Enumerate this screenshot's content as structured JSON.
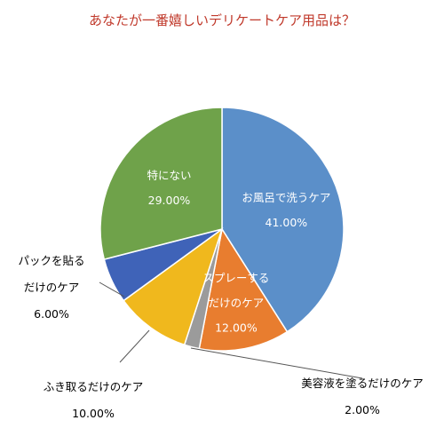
{
  "chart_data": {
    "type": "pie",
    "title": "あなたが一番嬉しいデリケートケア用品は？",
    "slices": [
      {
        "label": [
          "お風呂で洗うケア"
        ],
        "value": 41.0,
        "value_label": "41.00%",
        "color": "#5b8fc9",
        "label_inside": true,
        "text_color": "#ffffff"
      },
      {
        "label": [
          "スプレーする",
          "だけのケア"
        ],
        "value": 12.0,
        "value_label": "12.00%",
        "color": "#e87d2f",
        "label_inside": true,
        "text_color": "#ffffff"
      },
      {
        "label": [
          "美容液を塗るだけのケア"
        ],
        "value": 2.0,
        "value_label": "2.00%",
        "color": "#9b9b9b",
        "label_inside": false,
        "text_color": "#000000"
      },
      {
        "label": [
          "ふき取るだけのケア"
        ],
        "value": 10.0,
        "value_label": "10.00%",
        "color": "#f0b81d",
        "label_inside": false,
        "text_color": "#000000"
      },
      {
        "label": [
          "パックを貼る",
          "だけのケア"
        ],
        "value": 6.0,
        "value_label": "6.00%",
        "color": "#3f63b8",
        "label_inside": false,
        "text_color": "#000000"
      },
      {
        "label": [
          "特にない"
        ],
        "value": 29.0,
        "value_label": "29.00%",
        "color": "#6fa24a",
        "label_inside": true,
        "text_color": "#ffffff"
      }
    ],
    "start_angle": "12 o'clock",
    "direction": "clockwise"
  }
}
